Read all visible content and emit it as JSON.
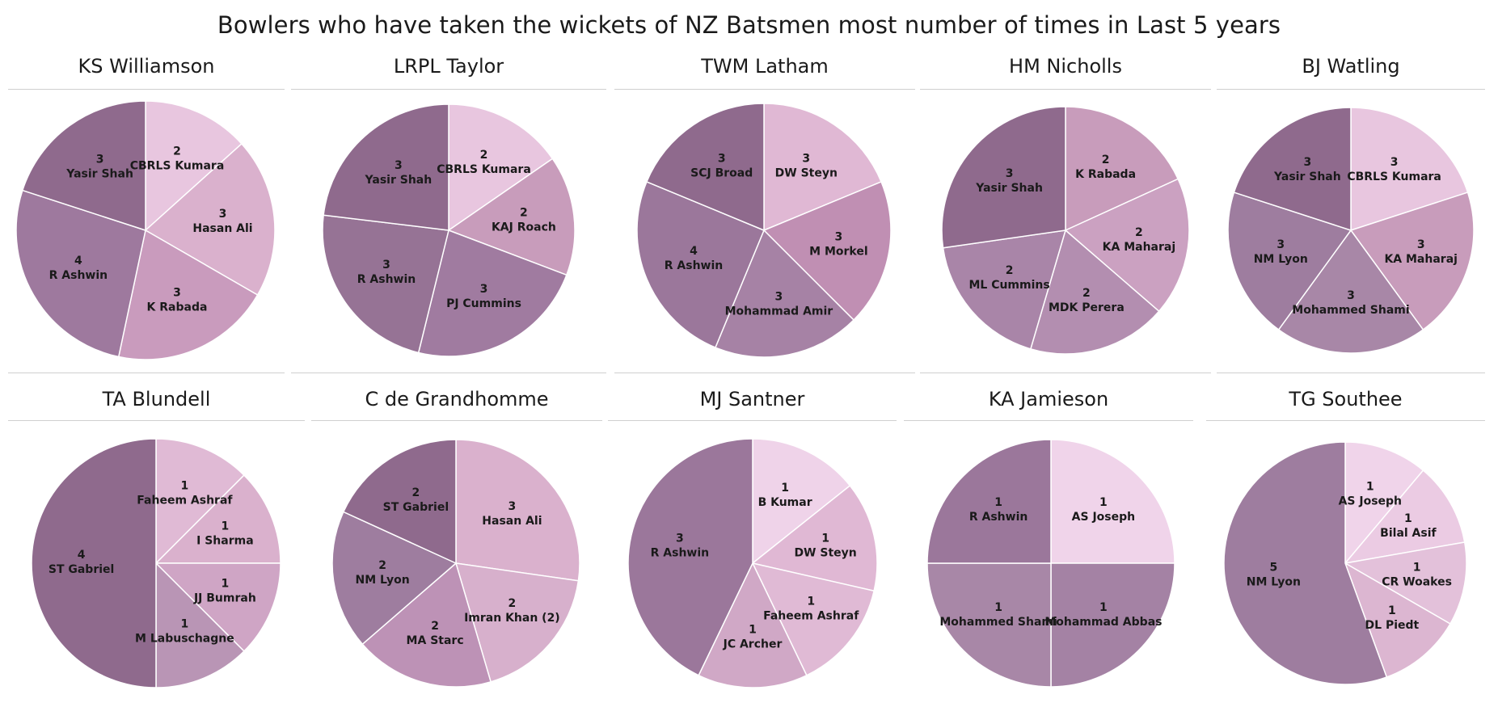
{
  "title": "Bowlers who have taken the wickets of NZ Batsmen most number of times in Last 5 years",
  "chart_data": [
    {
      "type": "pie",
      "title": "KS Williamson",
      "slices": [
        {
          "label": "CBRLS Kumara",
          "value": 2,
          "color": "#e8c6df"
        },
        {
          "label": "Hasan Ali",
          "value": 3,
          "color": "#dab1cd"
        },
        {
          "label": "K Rabada",
          "value": 3,
          "color": "#c99bbd"
        },
        {
          "label": "R Ashwin",
          "value": 4,
          "color": "#9e799e"
        },
        {
          "label": "Yasir Shah",
          "value": 3,
          "color": "#8f6a8d"
        }
      ]
    },
    {
      "type": "pie",
      "title": "LRPL Taylor",
      "slices": [
        {
          "label": "CBRLS Kumara",
          "value": 2,
          "color": "#e8c6df"
        },
        {
          "label": "KAJ Roach",
          "value": 2,
          "color": "#c89cbb"
        },
        {
          "label": "PJ Cummins",
          "value": 3,
          "color": "#a07ba0"
        },
        {
          "label": "R Ashwin",
          "value": 3,
          "color": "#967395"
        },
        {
          "label": "Yasir Shah",
          "value": 3,
          "color": "#8f6a8d"
        }
      ]
    },
    {
      "type": "pie",
      "title": "TWM Latham",
      "slices": [
        {
          "label": "DW Steyn",
          "value": 3,
          "color": "#e0b8d4"
        },
        {
          "label": "M Morkel",
          "value": 3,
          "color": "#c08fb3"
        },
        {
          "label": "Mohammad Amir",
          "value": 3,
          "color": "#a682a5"
        },
        {
          "label": "R Ashwin",
          "value": 4,
          "color": "#9b779b"
        },
        {
          "label": "SCJ Broad",
          "value": 3,
          "color": "#8f6a8d"
        }
      ]
    },
    {
      "type": "pie",
      "title": "HM Nicholls",
      "slices": [
        {
          "label": "K Rabada",
          "value": 2,
          "color": "#c89cbb"
        },
        {
          "label": "KA Maharaj",
          "value": 2,
          "color": "#cba1c1"
        },
        {
          "label": "MDK Perera",
          "value": 2,
          "color": "#b38eb0"
        },
        {
          "label": "ML Cummins",
          "value": 2,
          "color": "#a985a8"
        },
        {
          "label": "Yasir Shah",
          "value": 3,
          "color": "#8f6a8d"
        }
      ]
    },
    {
      "type": "pie",
      "title": "BJ Watling",
      "slices": [
        {
          "label": "CBRLS Kumara",
          "value": 3,
          "color": "#e8c6df"
        },
        {
          "label": "KA Maharaj",
          "value": 3,
          "color": "#c89cbb"
        },
        {
          "label": "Mohammed Shami",
          "value": 3,
          "color": "#a887a7"
        },
        {
          "label": "NM Lyon",
          "value": 3,
          "color": "#9e7d9f"
        },
        {
          "label": "Yasir Shah",
          "value": 3,
          "color": "#8f6a8d"
        }
      ]
    },
    {
      "type": "pie",
      "title": "TA Blundell",
      "slices": [
        {
          "label": "Faheem Ashraf",
          "value": 1,
          "color": "#e0bad5"
        },
        {
          "label": "I Sharma",
          "value": 1,
          "color": "#dab1cd"
        },
        {
          "label": "JJ Bumrah",
          "value": 1,
          "color": "#cfa5c5"
        },
        {
          "label": "M Labuschagne",
          "value": 1,
          "color": "#b995b5"
        },
        {
          "label": "ST Gabriel",
          "value": 4,
          "color": "#8f6a8d"
        }
      ]
    },
    {
      "type": "pie",
      "title": "C de Grandhomme",
      "slices": [
        {
          "label": "Hasan Ali",
          "value": 3,
          "color": "#dab1cd"
        },
        {
          "label": "Imran Khan (2)",
          "value": 2,
          "color": "#d7b0cc"
        },
        {
          "label": "MA Starc",
          "value": 2,
          "color": "#bd92b6"
        },
        {
          "label": "NM Lyon",
          "value": 2,
          "color": "#9e7d9f"
        },
        {
          "label": "ST Gabriel",
          "value": 2,
          "color": "#8f6a8d"
        }
      ]
    },
    {
      "type": "pie",
      "title": "MJ Santner",
      "slices": [
        {
          "label": "B Kumar",
          "value": 1,
          "color": "#efd3e9"
        },
        {
          "label": "DW Steyn",
          "value": 1,
          "color": "#e0b8d4"
        },
        {
          "label": "Faheem Ashraf",
          "value": 1,
          "color": "#e0bad5"
        },
        {
          "label": "JC Archer",
          "value": 1,
          "color": "#d0a8c6"
        },
        {
          "label": "R Ashwin",
          "value": 3,
          "color": "#9b779b"
        }
      ]
    },
    {
      "type": "pie",
      "title": "KA Jamieson",
      "slices": [
        {
          "label": "AS Joseph",
          "value": 1,
          "color": "#f0d4ea"
        },
        {
          "label": "Mohammad Abbas",
          "value": 1,
          "color": "#a482a4"
        },
        {
          "label": "Mohammed Shami",
          "value": 1,
          "color": "#a887a7"
        },
        {
          "label": "R Ashwin",
          "value": 1,
          "color": "#9b779b"
        }
      ]
    },
    {
      "type": "pie",
      "title": "TG Southee",
      "slices": [
        {
          "label": "AS Joseph",
          "value": 1,
          "color": "#f0d4ea"
        },
        {
          "label": "Bilal Asif",
          "value": 1,
          "color": "#ebcbe3"
        },
        {
          "label": "CR Woakes",
          "value": 1,
          "color": "#e3c1da"
        },
        {
          "label": "DL Piedt",
          "value": 1,
          "color": "#dcb6d1"
        },
        {
          "label": "NM Lyon",
          "value": 5,
          "color": "#9e7d9f"
        }
      ]
    }
  ]
}
